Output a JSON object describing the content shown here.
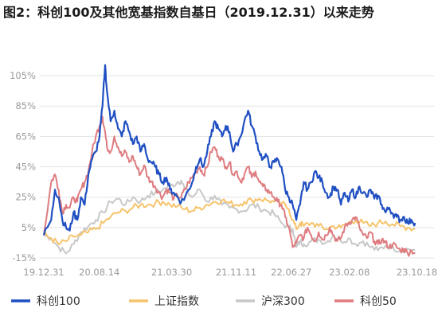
{
  "title": "图2：科创100及其他宽基指数自基日（2019.12.31）以来走势",
  "chart_data": {
    "type": "line",
    "title": "图2：科创100及其他宽基指数自基日（2019.12.31）以来走势",
    "xlabel": "",
    "ylabel": "",
    "y_unit": "%",
    "ylim": [
      -15,
      115
    ],
    "y_ticks": [
      {
        "value": 105,
        "label": "105%"
      },
      {
        "value": 85,
        "label": "85%"
      },
      {
        "value": 65,
        "label": "65%"
      },
      {
        "value": 45,
        "label": "45%"
      },
      {
        "value": 25,
        "label": "25%"
      },
      {
        "value": 5,
        "label": "5%"
      },
      {
        "value": -15,
        "label": "-15%"
      }
    ],
    "x_range": [
      0,
      100
    ],
    "x_ticks": [
      {
        "x": 0,
        "label": "19.12.31"
      },
      {
        "x": 16.9,
        "label": "20.08.14"
      },
      {
        "x": 38.9,
        "label": "21.03.30"
      },
      {
        "x": 58.5,
        "label": "21.11.11"
      },
      {
        "x": 75.3,
        "label": "22.06.27"
      },
      {
        "x": 93.0,
        "label": "23.02.08"
      },
      {
        "x": 113.5,
        "label": "23.10.18"
      }
    ],
    "grid": true,
    "legend_position": "bottom",
    "colors": {
      "科创100": "#1f4fc2",
      "上证指数": "#f6c46c",
      "沪深300": "#c8c8c8",
      "科创50": "#de7c80"
    },
    "series": [
      {
        "name": "科创100",
        "color": "#1f4fc2",
        "points": [
          [
            0,
            0
          ],
          [
            2,
            10
          ],
          [
            3,
            30
          ],
          [
            4,
            25
          ],
          [
            5,
            10
          ],
          [
            6,
            5
          ],
          [
            7,
            3
          ],
          [
            8,
            15
          ],
          [
            9,
            10
          ],
          [
            10,
            25
          ],
          [
            11,
            20
          ],
          [
            12,
            40
          ],
          [
            13,
            50
          ],
          [
            14,
            55
          ],
          [
            15,
            65
          ],
          [
            15.8,
            85
          ],
          [
            16.5,
            112
          ],
          [
            17,
            95
          ],
          [
            18,
            75
          ],
          [
            19,
            82
          ],
          [
            20,
            70
          ],
          [
            21,
            65
          ],
          [
            22,
            75
          ],
          [
            23,
            68
          ],
          [
            24,
            60
          ],
          [
            25,
            65
          ],
          [
            26,
            55
          ],
          [
            27,
            60
          ],
          [
            28,
            50
          ],
          [
            29,
            48
          ],
          [
            30,
            45
          ],
          [
            31,
            40
          ],
          [
            32,
            35
          ],
          [
            33,
            38
          ],
          [
            34,
            30
          ],
          [
            35,
            28
          ],
          [
            36,
            25
          ],
          [
            37,
            22
          ],
          [
            38,
            25
          ],
          [
            39,
            30
          ],
          [
            40,
            35
          ],
          [
            41,
            45
          ],
          [
            42,
            50
          ],
          [
            43,
            45
          ],
          [
            44,
            55
          ],
          [
            45,
            65
          ],
          [
            46,
            75
          ],
          [
            47,
            70
          ],
          [
            48,
            65
          ],
          [
            49,
            72
          ],
          [
            50,
            68
          ],
          [
            51,
            55
          ],
          [
            52,
            60
          ],
          [
            53,
            65
          ],
          [
            54,
            75
          ],
          [
            55,
            82
          ],
          [
            56,
            72
          ],
          [
            57,
            65
          ],
          [
            58,
            55
          ],
          [
            59,
            50
          ],
          [
            60,
            52
          ],
          [
            61,
            45
          ],
          [
            62,
            48
          ],
          [
            63,
            50
          ],
          [
            64,
            45
          ],
          [
            65,
            30
          ],
          [
            66,
            25
          ],
          [
            67,
            20
          ],
          [
            68,
            10
          ],
          [
            69,
            20
          ],
          [
            70,
            35
          ],
          [
            71,
            30
          ],
          [
            72,
            35
          ],
          [
            73,
            42
          ],
          [
            74,
            38
          ],
          [
            75,
            35
          ],
          [
            76,
            28
          ],
          [
            77,
            25
          ],
          [
            78,
            32
          ],
          [
            79,
            30
          ],
          [
            80,
            20
          ],
          [
            81,
            28
          ],
          [
            82,
            22
          ],
          [
            83,
            30
          ],
          [
            84,
            25
          ],
          [
            85,
            32
          ],
          [
            86,
            28
          ],
          [
            87,
            25
          ],
          [
            88,
            30
          ],
          [
            89,
            24
          ],
          [
            90,
            26
          ],
          [
            91,
            20
          ],
          [
            92,
            15
          ],
          [
            93,
            18
          ],
          [
            94,
            14
          ],
          [
            95,
            12
          ],
          [
            96,
            10
          ],
          [
            97,
            12
          ],
          [
            98,
            8
          ],
          [
            99,
            10
          ],
          [
            100,
            8
          ]
        ]
      },
      {
        "name": "上证指数",
        "color": "#f6c46c",
        "points": [
          [
            0,
            0
          ],
          [
            2,
            -2
          ],
          [
            4,
            -6
          ],
          [
            6,
            -4
          ],
          [
            8,
            -1
          ],
          [
            10,
            0
          ],
          [
            12,
            2
          ],
          [
            14,
            4
          ],
          [
            16,
            8
          ],
          [
            18,
            12
          ],
          [
            20,
            15
          ],
          [
            22,
            16
          ],
          [
            24,
            18
          ],
          [
            26,
            20
          ],
          [
            28,
            20
          ],
          [
            30,
            21
          ],
          [
            32,
            22
          ],
          [
            34,
            20
          ],
          [
            36,
            19
          ],
          [
            38,
            17
          ],
          [
            40,
            16
          ],
          [
            42,
            18
          ],
          [
            44,
            20
          ],
          [
            46,
            22
          ],
          [
            48,
            23
          ],
          [
            50,
            21
          ],
          [
            52,
            20
          ],
          [
            54,
            22
          ],
          [
            56,
            23
          ],
          [
            58,
            24
          ],
          [
            60,
            23
          ],
          [
            62,
            22
          ],
          [
            64,
            21
          ],
          [
            66,
            17
          ],
          [
            67,
            10
          ],
          [
            68,
            4
          ],
          [
            69,
            8
          ],
          [
            70,
            6
          ],
          [
            72,
            8
          ],
          [
            74,
            6
          ],
          [
            76,
            4
          ],
          [
            78,
            6
          ],
          [
            80,
            5
          ],
          [
            82,
            8
          ],
          [
            84,
            10
          ],
          [
            86,
            8
          ],
          [
            88,
            6
          ],
          [
            90,
            8
          ],
          [
            92,
            9
          ],
          [
            94,
            7
          ],
          [
            96,
            6
          ],
          [
            98,
            5
          ],
          [
            100,
            4
          ]
        ]
      },
      {
        "name": "沪深300",
        "color": "#c8c8c8",
        "points": [
          [
            0,
            0
          ],
          [
            2,
            -2
          ],
          [
            4,
            -8
          ],
          [
            6,
            -12
          ],
          [
            8,
            -6
          ],
          [
            10,
            2
          ],
          [
            12,
            6
          ],
          [
            14,
            10
          ],
          [
            16,
            15
          ],
          [
            18,
            22
          ],
          [
            20,
            24
          ],
          [
            22,
            20
          ],
          [
            24,
            25
          ],
          [
            26,
            22
          ],
          [
            28,
            26
          ],
          [
            30,
            28
          ],
          [
            32,
            30
          ],
          [
            34,
            32
          ],
          [
            36,
            35
          ],
          [
            37,
            36
          ],
          [
            38,
            30
          ],
          [
            40,
            25
          ],
          [
            42,
            30
          ],
          [
            44,
            22
          ],
          [
            46,
            26
          ],
          [
            48,
            20
          ],
          [
            50,
            18
          ],
          [
            52,
            17
          ],
          [
            54,
            16
          ],
          [
            56,
            20
          ],
          [
            58,
            18
          ],
          [
            60,
            16
          ],
          [
            62,
            14
          ],
          [
            64,
            8
          ],
          [
            66,
            5
          ],
          [
            67,
            4
          ],
          [
            68,
            -8
          ],
          [
            69,
            -4
          ],
          [
            70,
            -6
          ],
          [
            72,
            -4
          ],
          [
            74,
            -3
          ],
          [
            76,
            -5
          ],
          [
            78,
            0
          ],
          [
            80,
            -4
          ],
          [
            82,
            -2
          ],
          [
            84,
            -6
          ],
          [
            86,
            -4
          ],
          [
            88,
            -8
          ],
          [
            90,
            -10
          ],
          [
            92,
            -7
          ],
          [
            94,
            -8
          ],
          [
            96,
            -10
          ],
          [
            98,
            -9
          ],
          [
            100,
            -10
          ]
        ]
      },
      {
        "name": "科创50",
        "color": "#de7c80",
        "points": [
          [
            0,
            0
          ],
          [
            2,
            35
          ],
          [
            3,
            40
          ],
          [
            4,
            30
          ],
          [
            5,
            15
          ],
          [
            6,
            20
          ],
          [
            7,
            18
          ],
          [
            8,
            25
          ],
          [
            9,
            22
          ],
          [
            10,
            30
          ],
          [
            11,
            35
          ],
          [
            12,
            42
          ],
          [
            13,
            55
          ],
          [
            14,
            65
          ],
          [
            15,
            72
          ],
          [
            15.8,
            78
          ],
          [
            16.5,
            68
          ],
          [
            17,
            58
          ],
          [
            18,
            55
          ],
          [
            19,
            65
          ],
          [
            20,
            58
          ],
          [
            21,
            52
          ],
          [
            22,
            55
          ],
          [
            23,
            48
          ],
          [
            24,
            52
          ],
          [
            25,
            45
          ],
          [
            26,
            40
          ],
          [
            27,
            46
          ],
          [
            28,
            38
          ],
          [
            29,
            35
          ],
          [
            30,
            32
          ],
          [
            31,
            28
          ],
          [
            32,
            25
          ],
          [
            33,
            30
          ],
          [
            34,
            28
          ],
          [
            35,
            24
          ],
          [
            36,
            26
          ],
          [
            37,
            25
          ],
          [
            38,
            30
          ],
          [
            39,
            35
          ],
          [
            40,
            38
          ],
          [
            41,
            42
          ],
          [
            42,
            45
          ],
          [
            43,
            40
          ],
          [
            44,
            45
          ],
          [
            45,
            55
          ],
          [
            46,
            58
          ],
          [
            47,
            52
          ],
          [
            48,
            50
          ],
          [
            49,
            45
          ],
          [
            50,
            48
          ],
          [
            51,
            40
          ],
          [
            52,
            42
          ],
          [
            53,
            35
          ],
          [
            54,
            40
          ],
          [
            55,
            45
          ],
          [
            56,
            38
          ],
          [
            57,
            42
          ],
          [
            58,
            35
          ],
          [
            59,
            32
          ],
          [
            60,
            30
          ],
          [
            61,
            28
          ],
          [
            62,
            25
          ],
          [
            63,
            22
          ],
          [
            64,
            20
          ],
          [
            65,
            12
          ],
          [
            66,
            5
          ],
          [
            67,
            -8
          ],
          [
            68,
            -5
          ],
          [
            69,
            0
          ],
          [
            70,
            -2
          ],
          [
            71,
            5
          ],
          [
            72,
            0
          ],
          [
            73,
            -4
          ],
          [
            74,
            2
          ],
          [
            75,
            -3
          ],
          [
            76,
            0
          ],
          [
            77,
            5
          ],
          [
            78,
            0
          ],
          [
            79,
            -4
          ],
          [
            80,
            -2
          ],
          [
            81,
            5
          ],
          [
            82,
            8
          ],
          [
            83,
            10
          ],
          [
            84,
            12
          ],
          [
            85,
            5
          ],
          [
            86,
            0
          ],
          [
            87,
            -2
          ],
          [
            88,
            2
          ],
          [
            89,
            -4
          ],
          [
            90,
            -6
          ],
          [
            91,
            -3
          ],
          [
            92,
            -5
          ],
          [
            93,
            -8
          ],
          [
            94,
            -6
          ],
          [
            95,
            -8
          ],
          [
            96,
            -10
          ],
          [
            97,
            -9
          ],
          [
            98,
            -12
          ],
          [
            99,
            -10
          ],
          [
            100,
            -12
          ]
        ]
      }
    ]
  },
  "legend": {
    "items": [
      {
        "label": "科创100",
        "color": "#1f4fc2"
      },
      {
        "label": "上证指数",
        "color": "#f6c46c"
      },
      {
        "label": "沪深300",
        "color": "#c8c8c8"
      },
      {
        "label": "科创50",
        "color": "#de7c80"
      }
    ]
  }
}
